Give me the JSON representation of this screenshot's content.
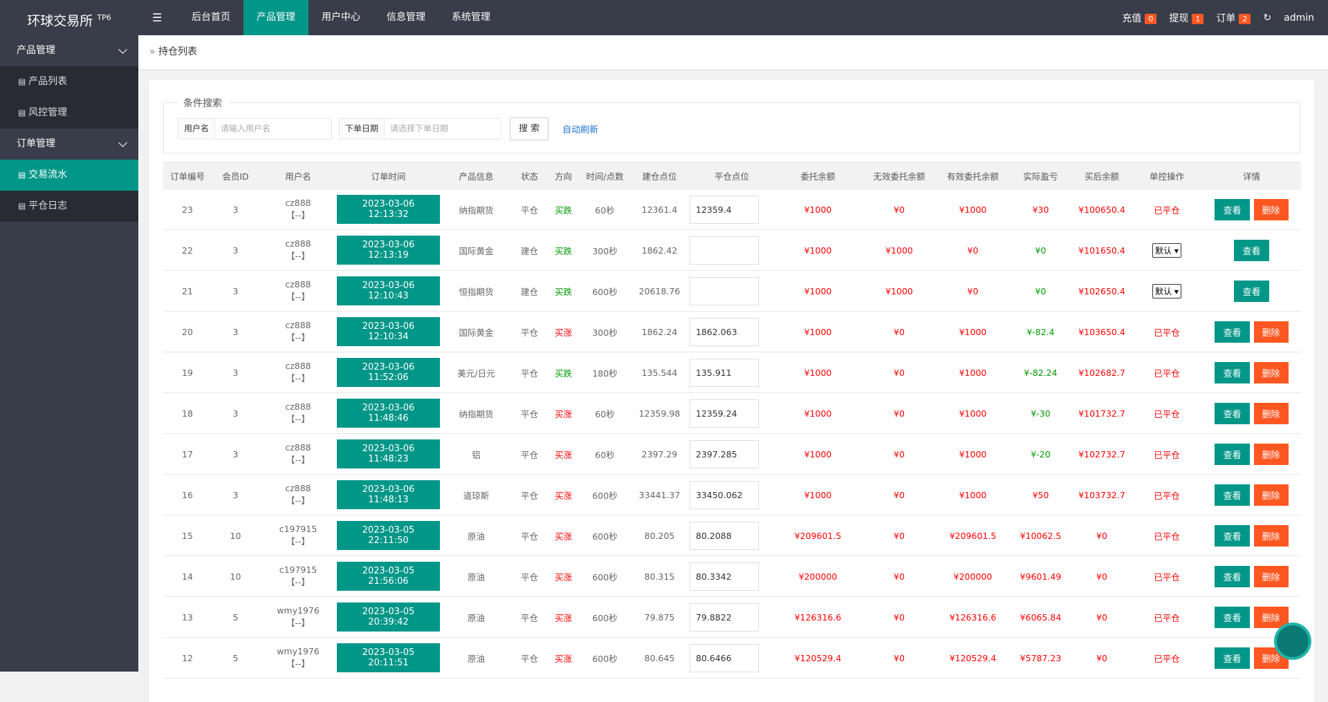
{
  "header": {
    "logo": "环球交易所",
    "logo_sup": "TP6",
    "nav": [
      "后台首页",
      "产品管理",
      "用户中心",
      "信息管理",
      "系统管理"
    ],
    "nav_active": 1,
    "badges": [
      {
        "label": "充值",
        "count": "0"
      },
      {
        "label": "提现",
        "count": "1"
      },
      {
        "label": "订单",
        "count": "2"
      }
    ],
    "user": "admin"
  },
  "sidebar": {
    "groups": [
      {
        "title": "产品管理",
        "items": [
          "产品列表",
          "风控管理"
        ]
      },
      {
        "title": "订单管理",
        "items": [
          "交易流水",
          "平仓日志"
        ]
      }
    ],
    "active": [
      1,
      0
    ]
  },
  "breadcrumb": "持仓列表",
  "search": {
    "legend": "条件搜索",
    "fields": [
      {
        "label": "用户名",
        "placeholder": "请输入用户名"
      },
      {
        "label": "下单日期",
        "placeholder": "请选择下单日期"
      }
    ],
    "button": "搜 索",
    "auto": "自动刷新"
  },
  "table": {
    "columns": [
      "订单编号",
      "会员ID",
      "用户名",
      "订单时间",
      "产品信息",
      "状态",
      "方向",
      "时间/点数",
      "建仓点位",
      "平仓点位",
      "委托余额",
      "无效委托余额",
      "有效委托余额",
      "实际盈亏",
      "买后余额",
      "单控操作",
      "详情"
    ],
    "rows": [
      {
        "id": "23",
        "member": "3",
        "user": "cz888",
        "tag": "【--】",
        "time": "2023-03-06 12:13:32",
        "product": "纳指期货",
        "status": "平仓",
        "direction": "买跌",
        "direction_color": "#009900",
        "duration": "60秒",
        "open": "12361.4",
        "close": "12359.4",
        "commission": "¥1000",
        "invalid": "¥0",
        "valid": "¥1000",
        "pnl": "¥30",
        "pnl_color": "#ff0000",
        "balance": "¥100650.4",
        "op": "已平仓",
        "actions": [
          "查看",
          "删除"
        ]
      },
      {
        "id": "22",
        "member": "3",
        "user": "cz888",
        "tag": "【--】",
        "time": "2023-03-06 12:13:19",
        "product": "国际黄金",
        "status": "建仓",
        "direction": "买跌",
        "direction_color": "#009900",
        "duration": "300秒",
        "open": "1862.42",
        "close": "",
        "commission": "¥1000",
        "invalid": "¥1000",
        "valid": "¥0",
        "pnl": "¥0",
        "pnl_color": "#009900",
        "balance": "¥101650.4",
        "op_select": "默认",
        "actions": [
          "查看"
        ]
      },
      {
        "id": "21",
        "member": "3",
        "user": "cz888",
        "tag": "【--】",
        "time": "2023-03-06 12:10:43",
        "product": "恒指期货",
        "status": "建仓",
        "direction": "买跌",
        "direction_color": "#009900",
        "duration": "600秒",
        "open": "20618.76",
        "close": "",
        "commission": "¥1000",
        "invalid": "¥1000",
        "valid": "¥0",
        "pnl": "¥0",
        "pnl_color": "#009900",
        "balance": "¥102650.4",
        "op_select": "默认",
        "actions": [
          "查看"
        ]
      },
      {
        "id": "20",
        "member": "3",
        "user": "cz888",
        "tag": "【--】",
        "time": "2023-03-06 12:10:34",
        "product": "国际黄金",
        "status": "平仓",
        "direction": "买涨",
        "direction_color": "#ff0000",
        "duration": "300秒",
        "open": "1862.24",
        "close": "1862.063",
        "commission": "¥1000",
        "invalid": "¥0",
        "valid": "¥1000",
        "pnl": "¥-82.4",
        "pnl_color": "#009900",
        "balance": "¥103650.4",
        "op": "已平仓",
        "actions": [
          "查看",
          "删除"
        ]
      },
      {
        "id": "19",
        "member": "3",
        "user": "cz888",
        "tag": "【--】",
        "time": "2023-03-06 11:52:06",
        "product": "美元/日元",
        "status": "平仓",
        "direction": "买跌",
        "direction_color": "#009900",
        "duration": "180秒",
        "open": "135.544",
        "close": "135.911",
        "commission": "¥1000",
        "invalid": "¥0",
        "valid": "¥1000",
        "pnl": "¥-82.24",
        "pnl_color": "#009900",
        "balance": "¥102682.7",
        "op": "已平仓",
        "actions": [
          "查看",
          "删除"
        ]
      },
      {
        "id": "18",
        "member": "3",
        "user": "cz888",
        "tag": "【--】",
        "time": "2023-03-06 11:48:46",
        "product": "纳指期货",
        "status": "平仓",
        "direction": "买涨",
        "direction_color": "#ff0000",
        "duration": "60秒",
        "open": "12359.98",
        "close": "12359.24",
        "commission": "¥1000",
        "invalid": "¥0",
        "valid": "¥1000",
        "pnl": "¥-30",
        "pnl_color": "#009900",
        "balance": "¥101732.7",
        "op": "已平仓",
        "actions": [
          "查看",
          "删除"
        ]
      },
      {
        "id": "17",
        "member": "3",
        "user": "cz888",
        "tag": "【--】",
        "time": "2023-03-06 11:48:23",
        "product": "铝",
        "status": "平仓",
        "direction": "买涨",
        "direction_color": "#ff0000",
        "duration": "60秒",
        "open": "2397.29",
        "close": "2397.285",
        "commission": "¥1000",
        "invalid": "¥0",
        "valid": "¥1000",
        "pnl": "¥-20",
        "pnl_color": "#009900",
        "balance": "¥102732.7",
        "op": "已平仓",
        "actions": [
          "查看",
          "删除"
        ]
      },
      {
        "id": "16",
        "member": "3",
        "user": "cz888",
        "tag": "【--】",
        "time": "2023-03-06 11:48:13",
        "product": "道琼斯",
        "status": "平仓",
        "direction": "买涨",
        "direction_color": "#ff0000",
        "duration": "600秒",
        "open": "33441.37",
        "close": "33450.062",
        "commission": "¥1000",
        "invalid": "¥0",
        "valid": "¥1000",
        "pnl": "¥50",
        "pnl_color": "#ff0000",
        "balance": "¥103732.7",
        "op": "已平仓",
        "actions": [
          "查看",
          "删除"
        ]
      },
      {
        "id": "15",
        "member": "10",
        "user": "c197915",
        "tag": "【--】",
        "time": "2023-03-05 22:11:50",
        "product": "原油",
        "status": "平仓",
        "direction": "买涨",
        "direction_color": "#ff0000",
        "duration": "600秒",
        "open": "80.205",
        "close": "80.2088",
        "commission": "¥209601.5",
        "invalid": "¥0",
        "valid": "¥209601.5",
        "pnl": "¥10062.5",
        "pnl_color": "#ff0000",
        "balance": "¥0",
        "op": "已平仓",
        "actions": [
          "查看",
          "删除"
        ]
      },
      {
        "id": "14",
        "member": "10",
        "user": "c197915",
        "tag": "【--】",
        "time": "2023-03-05 21:56:06",
        "product": "原油",
        "status": "平仓",
        "direction": "买涨",
        "direction_color": "#ff0000",
        "duration": "600秒",
        "open": "80.315",
        "close": "80.3342",
        "commission": "¥200000",
        "invalid": "¥0",
        "valid": "¥200000",
        "pnl": "¥9601.49",
        "pnl_color": "#ff0000",
        "balance": "¥0",
        "op": "已平仓",
        "actions": [
          "查看",
          "删除"
        ]
      },
      {
        "id": "13",
        "member": "5",
        "user": "wmy1976",
        "tag": "【--】",
        "time": "2023-03-05 20:39:42",
        "product": "原油",
        "status": "平仓",
        "direction": "买涨",
        "direction_color": "#ff0000",
        "duration": "600秒",
        "open": "79.875",
        "close": "79.8822",
        "commission": "¥126316.6",
        "invalid": "¥0",
        "valid": "¥126316.6",
        "pnl": "¥6065.84",
        "pnl_color": "#ff0000",
        "balance": "¥0",
        "op": "已平仓",
        "actions": [
          "查看",
          "删除"
        ]
      },
      {
        "id": "12",
        "member": "5",
        "user": "wmy1976",
        "tag": "【--】",
        "time": "2023-03-05 20:11:51",
        "product": "原油",
        "status": "平仓",
        "direction": "买涨",
        "direction_color": "#ff0000",
        "duration": "600秒",
        "open": "80.645",
        "close": "80.6466",
        "commission": "¥120529.4",
        "invalid": "¥0",
        "valid": "¥120529.4",
        "pnl": "¥5787.23",
        "pnl_color": "#ff0000",
        "balance": "¥0",
        "op": "已平仓",
        "actions": [
          "查看",
          "删除"
        ]
      }
    ]
  }
}
